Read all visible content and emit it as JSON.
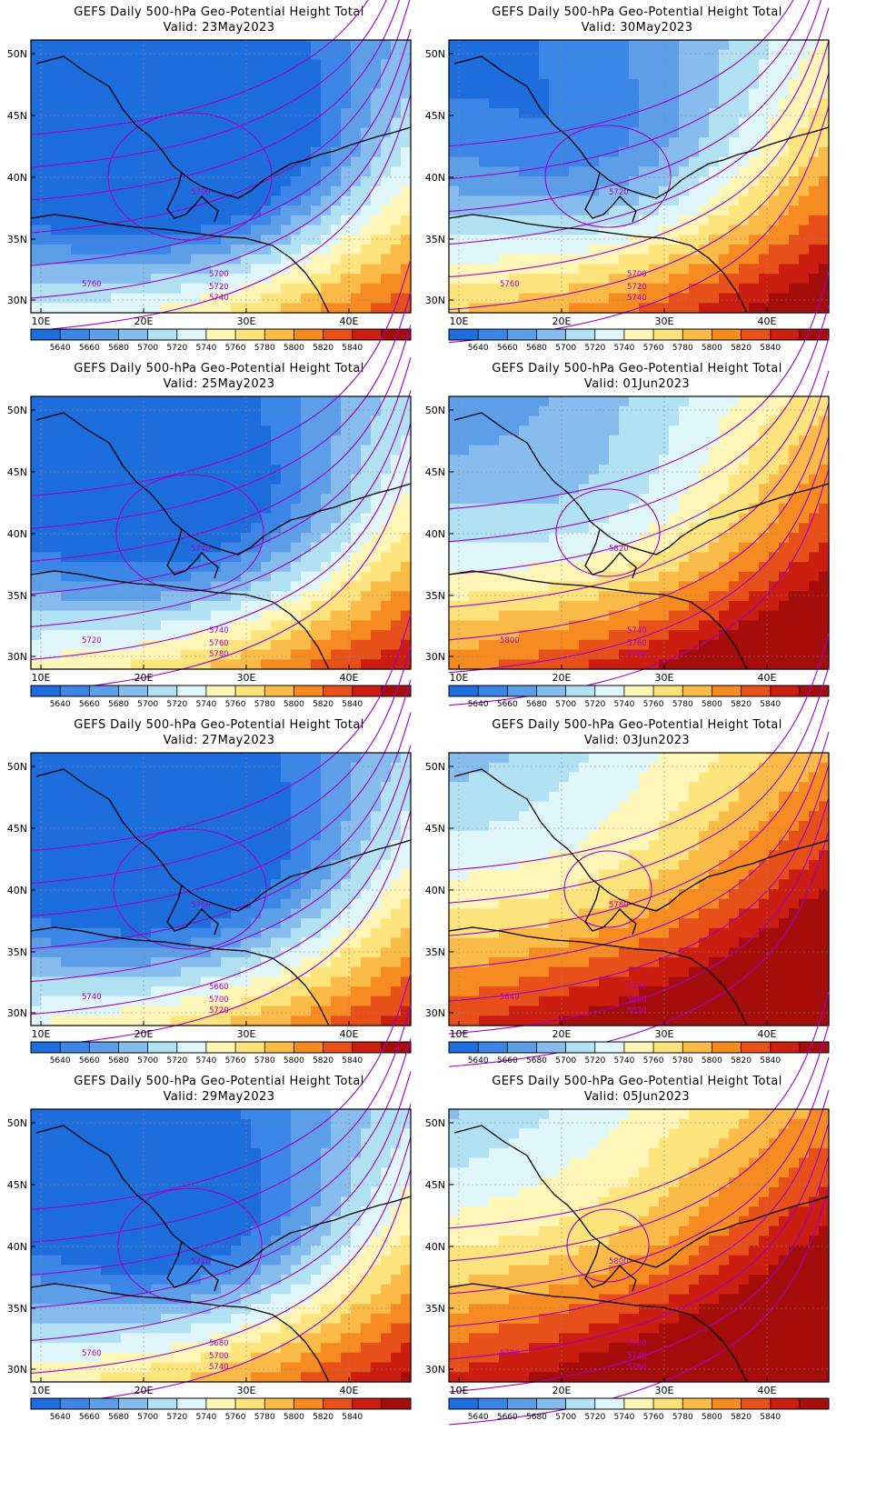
{
  "figure": {
    "title_line": "GEFS Daily 500-hPa Geo-Potential Height Total",
    "lat_ticks": [
      "50N",
      "45N",
      "40N",
      "35N",
      "30N"
    ],
    "lon_ticks": [
      "10E",
      "20E",
      "30E",
      "40E"
    ],
    "colorbar_labels": [
      "5640",
      "5660",
      "5680",
      "5700",
      "5720",
      "5740",
      "5760",
      "5780",
      "5800",
      "5820",
      "5840"
    ],
    "colorbar_colors": [
      "#1d6ddc",
      "#3b86e6",
      "#5d9ee9",
      "#86bcee",
      "#b1e1f3",
      "#dff7fb",
      "#fff6b8",
      "#fde47c",
      "#fbbb48",
      "#f68b22",
      "#e8501a",
      "#cc1e10",
      "#a50d0a"
    ]
  },
  "panels": [
    {
      "valid": "Valid: 23May2023",
      "day": "23May2023",
      "field_level": 0.0,
      "contour_labels": [
        "5700",
        "5720",
        "5740",
        "5760",
        "5700"
      ]
    },
    {
      "valid": "Valid: 30May2023",
      "day": "30May2023",
      "field_level": 0.35,
      "contour_labels": [
        "5700",
        "5720",
        "5740",
        "5760",
        "5720"
      ]
    },
    {
      "valid": "Valid: 25May2023",
      "day": "25May2023",
      "field_level": 0.15,
      "contour_labels": [
        "5740",
        "5760",
        "5780",
        "5720",
        "5740"
      ]
    },
    {
      "valid": "Valid: 01Jun2023",
      "day": "01Jun2023",
      "field_level": 0.55,
      "contour_labels": [
        "5740",
        "5760",
        "5780",
        "5800",
        "5820"
      ]
    },
    {
      "valid": "Valid: 27May2023",
      "day": "27May2023",
      "field_level": 0.1,
      "contour_labels": [
        "5660",
        "5700",
        "5720",
        "5740",
        "5760"
      ]
    },
    {
      "valid": "Valid: 03Jun2023",
      "day": "03Jun2023",
      "field_level": 0.7,
      "contour_labels": [
        "5780",
        "5800",
        "5820",
        "5840",
        "5780"
      ]
    },
    {
      "valid": "Valid: 29May2023",
      "day": "29May2023",
      "field_level": 0.18,
      "contour_labels": [
        "5680",
        "5700",
        "5740",
        "5760",
        "5720"
      ]
    },
    {
      "valid": "Valid: 05Jun2023",
      "day": "05Jun2023",
      "field_level": 0.75,
      "contour_labels": [
        "5720",
        "5740",
        "5760",
        "5780",
        "5800"
      ]
    }
  ]
}
